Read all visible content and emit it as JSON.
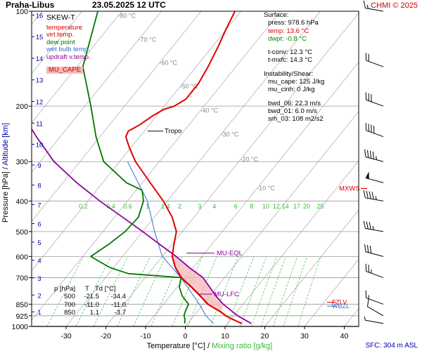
{
  "header": {
    "station": "Praha-Libus",
    "datetime": "23.05.2025 12 UTC",
    "source": "CHMI © 2025"
  },
  "legend": {
    "title": "SKEW-T",
    "items": [
      {
        "label": "temperature",
        "color": "#e00000"
      },
      {
        "label": "virt.temp.",
        "color": "#e00000"
      },
      {
        "label": "dew point",
        "color": "#007700"
      },
      {
        "label": "wet bulb temp.",
        "color": "#3070d0"
      },
      {
        "label": "updraft v.temp.",
        "color": "#9000a0"
      }
    ],
    "mu_cape_label": "MU_CAPE"
  },
  "surface": {
    "heading": "Surface:",
    "press": "press: 978.6 hPa",
    "temp": "temp: 13.6 °C",
    "dwpt": "dwpt: -0.8 °C",
    "tconv": "t-conv: 12.3 °C",
    "tmxfc": "t-mxfc: 14.3 °C"
  },
  "instability": {
    "heading": "Instability/Shear:",
    "mu_cape": "mu_cape: 125 J/kg",
    "mu_cinh": "mu_cinh: 0 J/kg",
    "bwd_06": "bwd_06: 22.3 m/s",
    "bwd_01": "bwd_01: 6.0 m/s",
    "srh_03": "srh_03: 108 m2/s2"
  },
  "table": {
    "headers": [
      "p [hPa]",
      "T",
      "Td [°C]"
    ],
    "rows": [
      [
        "500",
        "-21.5",
        "-34.4"
      ],
      [
        "700",
        "-11.0",
        "-11.0"
      ],
      [
        "850",
        "1.1",
        "-3.7"
      ]
    ]
  },
  "annotations": {
    "tropo": "Tropo",
    "mu_eql": "MU-EQL",
    "mu_lfc": "MU-LFC",
    "mxws": "MXWS",
    "fzlv": "FZLV",
    "wbzl": "WBZL",
    "sfc": "SFC: 304 m ASL"
  },
  "colors": {
    "temperature": "#e00000",
    "dewpoint": "#007700",
    "wetbulb": "#3070d0",
    "updraft": "#9000a0",
    "mixing_ratio": "#40c040",
    "isotherm": "#aaaaaa",
    "isobar": "#999999",
    "cape_fill": "#f4b8b8",
    "alt_axis": "#0000aa"
  },
  "chart_data": {
    "type": "skew-t",
    "xlabel": "Temperature [°C]",
    "xlabel_sep": "/",
    "xlabel2": "Mixing ratio [g/kg]",
    "ylabel": "Pressure [hPa]",
    "ylabel_sep": "/",
    "ylabel2": "Altitude [km]",
    "pressure_range": [
      1000,
      100
    ],
    "temperature_range": [
      -37,
      45
    ],
    "pressure_ticks": [
      100,
      200,
      300,
      400,
      500,
      600,
      700,
      850,
      925,
      1000
    ],
    "temperature_ticks": [
      -30,
      -20,
      -10,
      0,
      10,
      20,
      30,
      40
    ],
    "altitude_ticks_km": [
      1,
      2,
      3,
      4,
      5,
      6,
      7,
      8,
      9,
      10,
      11,
      12,
      13,
      14,
      15,
      16
    ],
    "isotherm_labels": [
      -80,
      -70,
      -60,
      -50,
      -40,
      -30,
      -20,
      -10
    ],
    "mixing_ratio_labels": [
      "0.2",
      "0.4",
      "0.6",
      "1",
      "1.4",
      "2",
      "3",
      "4",
      "6",
      "8",
      "10",
      "12",
      "14",
      "17",
      "20",
      "25"
    ],
    "mixing_ratio_values": [
      0.2,
      0.4,
      0.6,
      1,
      1.4,
      2,
      3,
      4,
      6,
      8,
      10,
      12,
      14,
      17,
      20,
      25
    ],
    "temperature": [
      [
        978.6,
        13.6
      ],
      [
        950,
        10.5
      ],
      [
        925,
        8.0
      ],
      [
        900,
        6.0
      ],
      [
        850,
        1.1
      ],
      [
        800,
        -2.5
      ],
      [
        750,
        -6.5
      ],
      [
        700,
        -11.0
      ],
      [
        650,
        -14.5
      ],
      [
        600,
        -17.5
      ],
      [
        550,
        -19.5
      ],
      [
        500,
        -21.5
      ],
      [
        450,
        -25.5
      ],
      [
        400,
        -31.0
      ],
      [
        350,
        -38.0
      ],
      [
        300,
        -46.0
      ],
      [
        270,
        -50.5
      ],
      [
        250,
        -53.5
      ],
      [
        240,
        -54.0
      ],
      [
        230,
        -52.5
      ],
      [
        215,
        -51.0
      ],
      [
        205,
        -49.5
      ],
      [
        200,
        -47.5
      ],
      [
        190,
        -46.0
      ],
      [
        180,
        -46.0
      ],
      [
        170,
        -46.0
      ],
      [
        150,
        -47.0
      ],
      [
        130,
        -48.5
      ],
      [
        115,
        -50.0
      ],
      [
        100,
        -51.5
      ]
    ],
    "virtual_temperature": [
      [
        978.6,
        13.7
      ],
      [
        950,
        10.7
      ],
      [
        925,
        8.2
      ],
      [
        900,
        6.2
      ],
      [
        850,
        1.3
      ],
      [
        800,
        -2.3
      ],
      [
        750,
        -6.3
      ],
      [
        700,
        -10.8
      ],
      [
        650,
        -14.4
      ],
      [
        600,
        -17.4
      ],
      [
        550,
        -19.5
      ],
      [
        500,
        -21.5
      ],
      [
        450,
        -25.5
      ],
      [
        400,
        -31.0
      ],
      [
        350,
        -38.0
      ],
      [
        300,
        -46.0
      ]
    ],
    "dewpoint": [
      [
        978.6,
        -0.8
      ],
      [
        950,
        -1.5
      ],
      [
        925,
        -2.5
      ],
      [
        900,
        -3.0
      ],
      [
        850,
        -3.7
      ],
      [
        800,
        -7.0
      ],
      [
        750,
        -9.5
      ],
      [
        700,
        -11.0
      ],
      [
        680,
        -25.0
      ],
      [
        650,
        -31.0
      ],
      [
        600,
        -38.0
      ],
      [
        550,
        -36.0
      ],
      [
        500,
        -34.4
      ],
      [
        450,
        -34.0
      ],
      [
        400,
        -36.0
      ],
      [
        370,
        -38.5
      ],
      [
        350,
        -44.0
      ],
      [
        300,
        -54.0
      ],
      [
        250,
        -61.0
      ],
      [
        200,
        -68.5
      ],
      [
        150,
        -78.5
      ],
      [
        100,
        -86.0
      ]
    ],
    "wet_bulb": [
      [
        978.6,
        6.5
      ],
      [
        925,
        3.0
      ],
      [
        850,
        -1.0
      ],
      [
        700,
        -11.0
      ],
      [
        600,
        -20.0
      ],
      [
        500,
        -27.0
      ],
      [
        400,
        -35.0
      ],
      [
        300,
        -48.0
      ]
    ],
    "updraft_virtual_temperature": [
      [
        978.6,
        16.0
      ],
      [
        925,
        11.0
      ],
      [
        850,
        5.0
      ],
      [
        800,
        1.5
      ],
      [
        700,
        -5.5
      ],
      [
        650,
        -11.0
      ],
      [
        600,
        -16.5
      ],
      [
        550,
        -23.0
      ],
      [
        500,
        -30.0
      ],
      [
        450,
        -38.0
      ],
      [
        400,
        -47.0
      ],
      [
        350,
        -56.5
      ],
      [
        300,
        -66.5
      ],
      [
        250,
        -76.0
      ],
      [
        200,
        -87.0
      ],
      [
        150,
        -100.0
      ],
      [
        100,
        -116.0
      ]
    ],
    "levels": {
      "tropopause_hPa": 240,
      "mu_eql_hPa": 585,
      "mu_lfc_hPa": 790,
      "fzlv_hPa": 838,
      "wbzl_hPa": 862,
      "mxws_hPa": 365
    },
    "wind_barbs": [
      {
        "p": 978.6,
        "dir": 280,
        "spd_kt": 5
      },
      {
        "p": 925,
        "dir": 300,
        "spd_kt": 10
      },
      {
        "p": 850,
        "dir": 290,
        "spd_kt": 15
      },
      {
        "p": 700,
        "dir": 290,
        "spd_kt": 25
      },
      {
        "p": 600,
        "dir": 285,
        "spd_kt": 30
      },
      {
        "p": 500,
        "dir": 280,
        "spd_kt": 35
      },
      {
        "p": 400,
        "dir": 280,
        "spd_kt": 45
      },
      {
        "p": 350,
        "dir": 285,
        "spd_kt": 50
      },
      {
        "p": 300,
        "dir": 285,
        "spd_kt": 45
      },
      {
        "p": 250,
        "dir": 290,
        "spd_kt": 40
      },
      {
        "p": 200,
        "dir": 290,
        "spd_kt": 30
      },
      {
        "p": 150,
        "dir": 290,
        "spd_kt": 20
      },
      {
        "p": 100,
        "dir": 280,
        "spd_kt": 15
      }
    ]
  }
}
